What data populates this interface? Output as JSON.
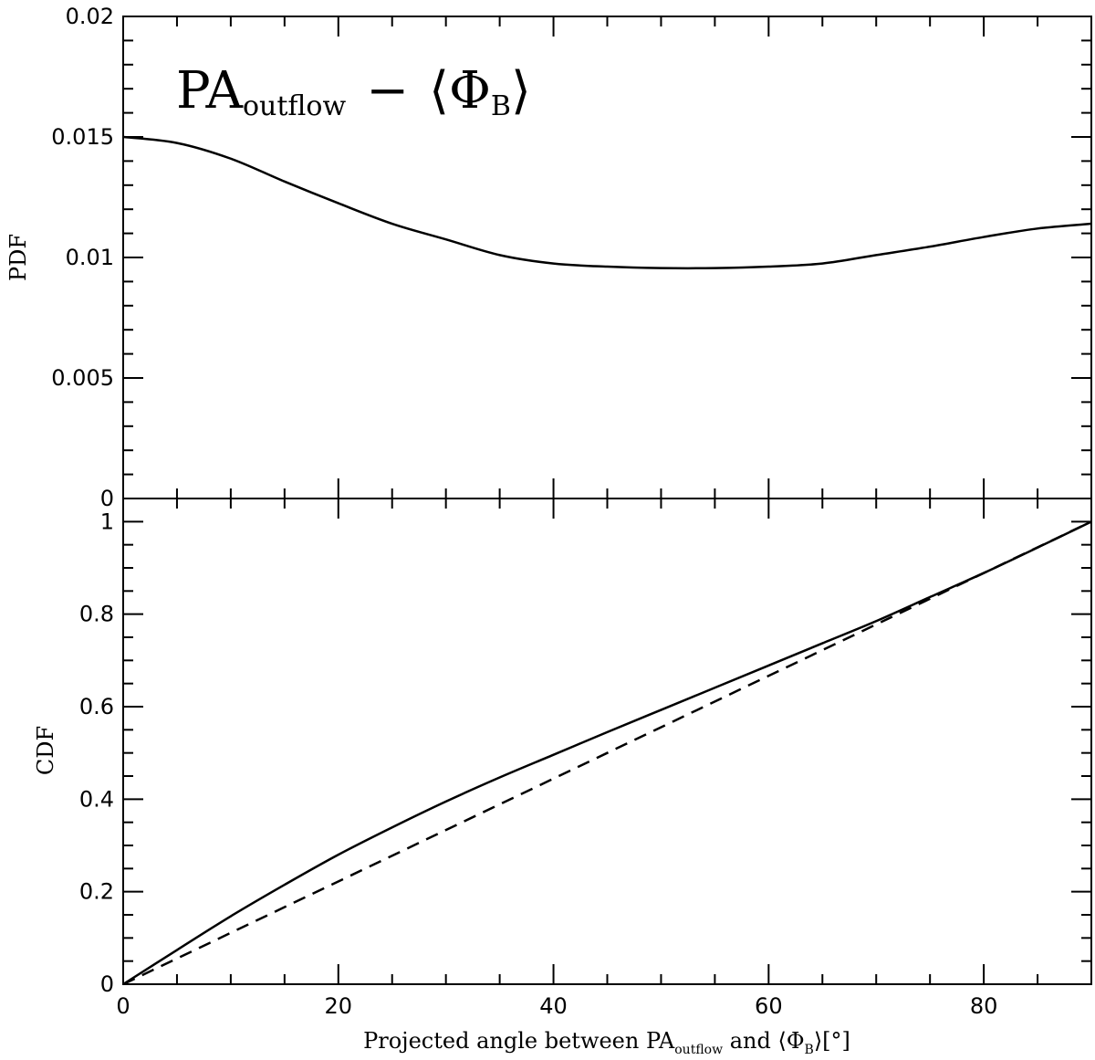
{
  "chart_data": [
    {
      "type": "line",
      "panel": "top",
      "ylabel": "PDF",
      "xlim": [
        0,
        90
      ],
      "ylim": [
        0,
        0.02
      ],
      "ytick_labels": [
        "0",
        "0.005",
        "0.01",
        "0.015",
        "0.02"
      ],
      "annotation": {
        "main": "PA",
        "sub": "outflow",
        "op": "−",
        "lbracket": "⟨",
        "phi": "Φ",
        "phisub": "B",
        "rbracket": "⟩"
      },
      "series": [
        {
          "style": "solid",
          "x": [
            0,
            5,
            10,
            15,
            20,
            25,
            30,
            35,
            40,
            45,
            50,
            55,
            60,
            65,
            70,
            75,
            80,
            85,
            90
          ],
          "y": [
            0.015,
            0.01475,
            0.0141,
            0.01315,
            0.01225,
            0.0114,
            0.01075,
            0.0101,
            0.00975,
            0.00962,
            0.00956,
            0.00956,
            0.00962,
            0.00975,
            0.0101,
            0.01045,
            0.01085,
            0.0112,
            0.0114
          ]
        }
      ]
    },
    {
      "type": "line",
      "panel": "bottom",
      "ylabel": "CDF",
      "xlabel": {
        "prefix": "Projected angle between PA",
        "sub1": "outflow",
        "middle": " and ⟨Φ",
        "sub2": "B",
        "suffix": "⟩[°]"
      },
      "xlim": [
        0,
        90
      ],
      "ylim": [
        0,
        1.05
      ],
      "xtick_labels": [
        "0",
        "20",
        "40",
        "60",
        "80"
      ],
      "ytick_labels": [
        "0",
        "0.2",
        "0.4",
        "0.6",
        "0.8",
        "1"
      ],
      "series": [
        {
          "style": "solid",
          "x": [
            0,
            5,
            10,
            15,
            20,
            25,
            30,
            35,
            40,
            45,
            50,
            55,
            60,
            65,
            70,
            75,
            80,
            85,
            90
          ],
          "y": [
            0,
            0.074,
            0.147,
            0.215,
            0.28,
            0.339,
            0.395,
            0.447,
            0.496,
            0.545,
            0.593,
            0.641,
            0.689,
            0.737,
            0.785,
            0.837,
            0.889,
            0.944,
            1.0
          ]
        },
        {
          "style": "dashed",
          "x": [
            0,
            90
          ],
          "y": [
            0,
            1.0
          ]
        }
      ]
    }
  ]
}
